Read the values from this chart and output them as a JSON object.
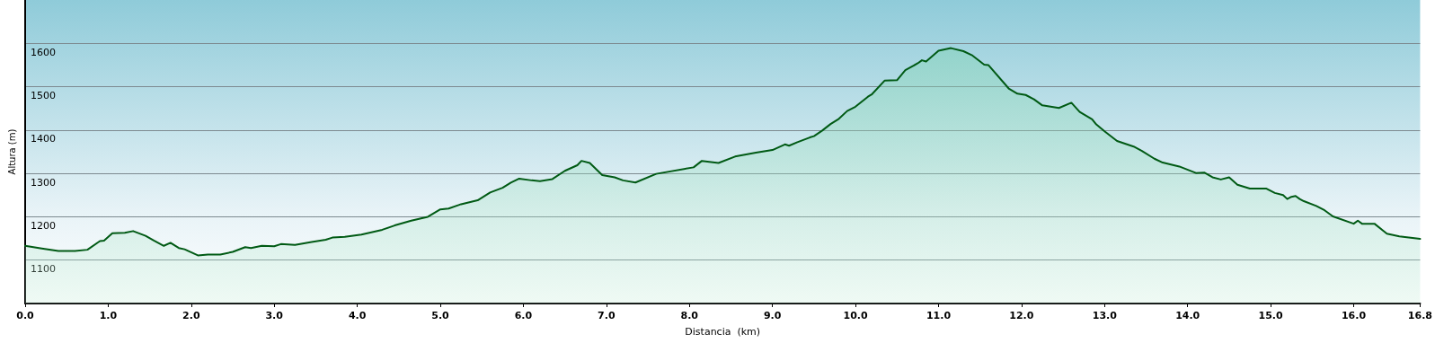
{
  "chart_data": {
    "type": "area",
    "xlabel": "Distancia  (km)",
    "ylabel": "Altura (m)",
    "xlim": [
      0,
      16.8
    ],
    "ylim": [
      1000,
      1700
    ],
    "xticks": [
      {
        "value": 0,
        "label": "0.0"
      },
      {
        "value": 1,
        "label": "1.0"
      },
      {
        "value": 2,
        "label": "2.0"
      },
      {
        "value": 3,
        "label": "3.0"
      },
      {
        "value": 4,
        "label": "4.0"
      },
      {
        "value": 5,
        "label": "5.0"
      },
      {
        "value": 6,
        "label": "6.0"
      },
      {
        "value": 7,
        "label": "7.0"
      },
      {
        "value": 8,
        "label": "8.0"
      },
      {
        "value": 9,
        "label": "9.0"
      },
      {
        "value": 10,
        "label": "10.0"
      },
      {
        "value": 11,
        "label": "11.0"
      },
      {
        "value": 12,
        "label": "12.0"
      },
      {
        "value": 13,
        "label": "13.0"
      },
      {
        "value": 14,
        "label": "14.0"
      },
      {
        "value": 15,
        "label": "15.0"
      },
      {
        "value": 16,
        "label": "16.0"
      },
      {
        "value": 16.8,
        "label": "16.8"
      }
    ],
    "yticks": [
      1100,
      1200,
      1300,
      1400,
      1500,
      1600
    ],
    "grid": "y",
    "marker": "none",
    "line_style": "solid",
    "series": [
      {
        "color": "#005a14",
        "x": [
          0,
          0.1,
          0.2,
          0.4,
          0.6,
          0.75,
          0.9,
          0.95,
          1.05,
          1.2,
          1.3,
          1.45,
          1.55,
          1.67,
          1.75,
          1.85,
          1.92,
          2.08,
          2.2,
          2.35,
          2.5,
          2.65,
          2.72,
          2.85,
          3.0,
          3.08,
          3.25,
          3.45,
          3.62,
          3.7,
          3.85,
          4.05,
          4.3,
          4.45,
          4.65,
          4.85,
          5.0,
          5.1,
          5.25,
          5.45,
          5.6,
          5.75,
          5.85,
          5.95,
          6.1,
          6.2,
          6.35,
          6.5,
          6.65,
          6.7,
          6.8,
          6.95,
          7.1,
          7.2,
          7.35,
          7.6,
          8.05,
          8.15,
          8.35,
          8.55,
          8.8,
          9.0,
          9.15,
          9.2,
          9.3,
          9.45,
          9.5,
          9.6,
          9.7,
          9.8,
          9.9,
          10.0,
          10.15,
          10.2,
          10.35,
          10.5,
          10.6,
          10.75,
          10.8,
          10.85,
          11.0,
          11.15,
          11.3,
          11.4,
          11.55,
          11.6,
          11.85,
          11.95,
          12.05,
          12.15,
          12.25,
          12.45,
          12.6,
          12.7,
          12.85,
          12.9,
          13.0,
          13.15,
          13.35,
          13.45,
          13.6,
          13.7,
          13.9,
          14.1,
          14.2,
          14.3,
          14.4,
          14.5,
          14.6,
          14.75,
          14.95,
          15.05,
          15.15,
          15.2,
          15.25,
          15.3,
          15.35,
          15.4,
          15.55,
          15.65,
          15.75,
          16.0,
          16.05,
          16.1,
          16.25,
          16.4,
          16.55,
          16.8
        ],
        "values": [
          1133,
          1130,
          1127,
          1121,
          1121,
          1124,
          1144,
          1145,
          1162,
          1163,
          1167,
          1156,
          1145,
          1133,
          1140,
          1128,
          1125,
          1111,
          1113,
          1113,
          1119,
          1130,
          1128,
          1133,
          1132,
          1137,
          1135,
          1142,
          1147,
          1152,
          1154,
          1159,
          1170,
          1180,
          1191,
          1200,
          1217,
          1219,
          1229,
          1238,
          1256,
          1267,
          1279,
          1288,
          1284,
          1282,
          1287,
          1306,
          1319,
          1329,
          1324,
          1296,
          1291,
          1284,
          1279,
          1299,
          1314,
          1329,
          1324,
          1339,
          1348,
          1354,
          1367,
          1364,
          1372,
          1383,
          1386,
          1399,
          1414,
          1426,
          1444,
          1454,
          1477,
          1483,
          1514,
          1515,
          1538,
          1554,
          1561,
          1558,
          1583,
          1589,
          1582,
          1573,
          1551,
          1550,
          1495,
          1484,
          1481,
          1471,
          1457,
          1451,
          1463,
          1442,
          1425,
          1413,
          1397,
          1375,
          1362,
          1352,
          1334,
          1325,
          1316,
          1301,
          1302,
          1291,
          1286,
          1291,
          1274,
          1265,
          1265,
          1255,
          1250,
          1241,
          1246,
          1248,
          1241,
          1236,
          1225,
          1215,
          1201,
          1184,
          1191,
          1184,
          1184,
          1161,
          1155,
          1149
        ]
      }
    ]
  }
}
